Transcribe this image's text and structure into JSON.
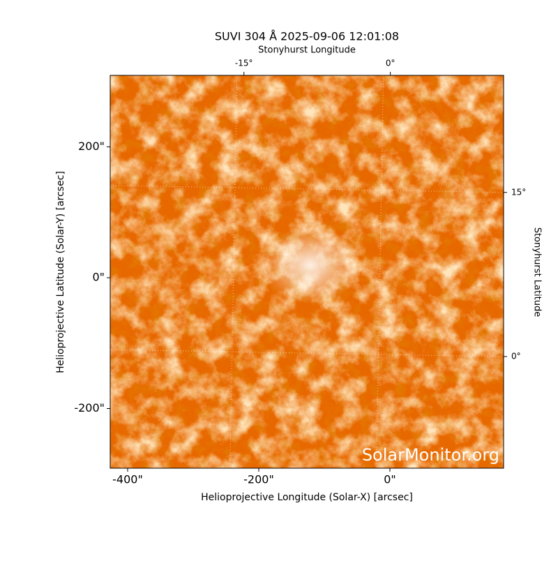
{
  "chart_data": {
    "type": "image",
    "title": "SUVI 304 Å 2025-09-06 12:01:08",
    "xlabel": "Helioprojective Longitude (Solar-X) [arcsec]",
    "ylabel": "Helioprojective Latitude (Solar-Y) [arcsec]",
    "x2label": "Stonyhurst Longitude",
    "y2label": "Stonyhurst Latitude",
    "watermark": "SolarMonitor.org",
    "xlim": [
      -426.6,
      173.4
    ],
    "xticks": [
      {
        "value": -400,
        "label": "-400\""
      },
      {
        "value": -200,
        "label": "-200\""
      },
      {
        "value": 0,
        "label": "0\""
      }
    ],
    "ylim": [
      -291.2,
      309.3
    ],
    "yticks": [
      {
        "value": -200,
        "label": "-200\""
      },
      {
        "value": 0,
        "label": "0\""
      },
      {
        "value": 200,
        "label": "200\""
      }
    ],
    "x2lim": [
      -28.7,
      11.6
    ],
    "x2ticks": [
      {
        "value": -15,
        "label": "-15°"
      },
      {
        "value": 0,
        "label": "0°"
      }
    ],
    "y2lim": [
      -10.2,
      25.7
    ],
    "y2ticks": [
      {
        "value": 0,
        "label": "0°"
      },
      {
        "value": 15,
        "label": "15°"
      }
    ],
    "grid": true
  }
}
